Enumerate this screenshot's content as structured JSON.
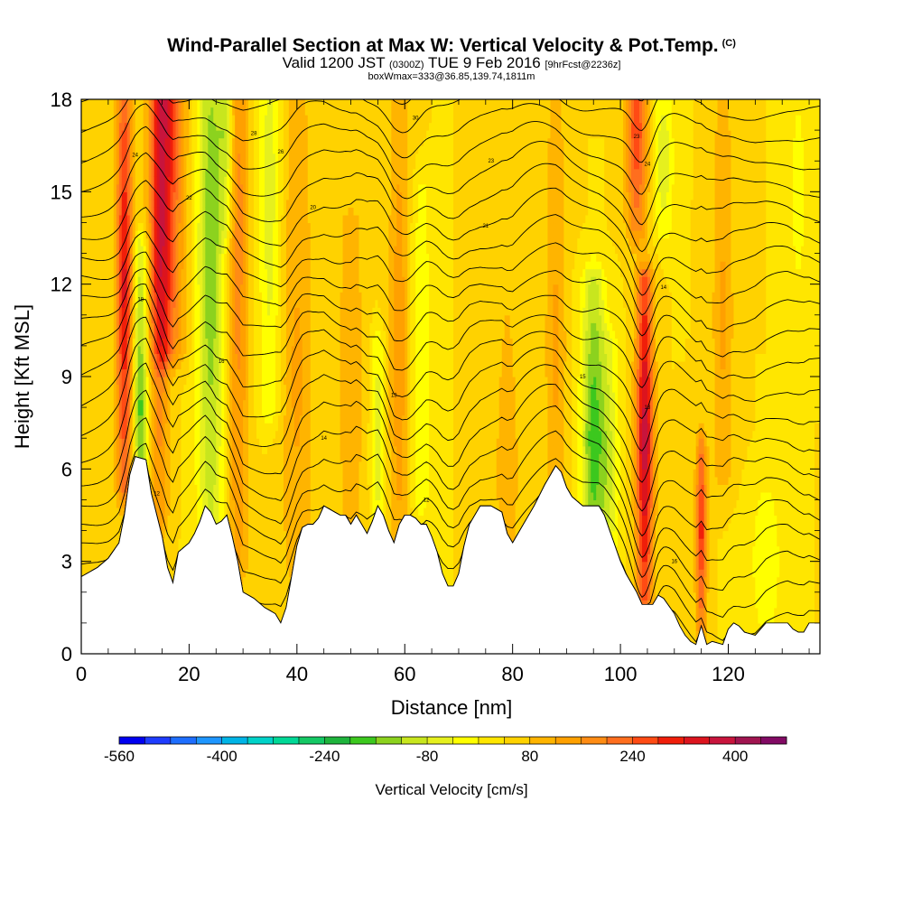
{
  "title": {
    "line1": "Wind-Parallel Section at Max W: Vertical Velocity & Pot.Temp.",
    "line1_mark": "(C)",
    "line2_a": "Valid 1200 JST",
    "line2_b": "(0300Z)",
    "line2_c": "TUE 9 Feb 2016",
    "line2_d": "[9hrFcst@2236z]",
    "line3": "boxWmax=333@36.85,139.74,1811m"
  },
  "chart_data": {
    "type": "heatmap",
    "xlabel": "Distance [nm]",
    "ylabel": "Height [Kft MSL]",
    "xlim": [
      0,
      137
    ],
    "ylim": [
      0,
      18
    ],
    "x_ticks": [
      0,
      20,
      40,
      60,
      80,
      100,
      120
    ],
    "y_ticks": [
      0,
      3,
      6,
      9,
      12,
      15,
      18
    ],
    "colorbar": {
      "label": "Vertical Velocity [cm/s]",
      "min": -560,
      "max": 480,
      "step": 40,
      "tick_values": [
        -560,
        -400,
        -240,
        -80,
        80,
        240,
        400
      ],
      "colors": [
        "#0000f0",
        "#1e3cff",
        "#1e6eff",
        "#1e96ff",
        "#00b4e6",
        "#00d2c8",
        "#00d896",
        "#14c864",
        "#1eb43c",
        "#3cc81e",
        "#8cd21e",
        "#c8e61e",
        "#e6f01e",
        "#ffff00",
        "#ffe600",
        "#ffd200",
        "#ffb400",
        "#ffa000",
        "#ff8c14",
        "#ff6e1e",
        "#ff4b14",
        "#f01e0a",
        "#dc141e",
        "#c8143c",
        "#a01450",
        "#820a64"
      ]
    },
    "terrain_kft": [
      [
        0,
        2.5
      ],
      [
        3,
        2.8
      ],
      [
        5,
        3.1
      ],
      [
        7,
        3.6
      ],
      [
        8,
        4.5
      ],
      [
        9,
        5.8
      ],
      [
        10,
        6.4
      ],
      [
        12,
        6.3
      ],
      [
        13,
        5.2
      ],
      [
        14,
        4.5
      ],
      [
        15,
        3.8
      ],
      [
        16,
        2.8
      ],
      [
        17,
        2.3
      ],
      [
        18,
        3.3
      ],
      [
        20,
        3.6
      ],
      [
        21,
        3.9
      ],
      [
        22,
        4.3
      ],
      [
        23,
        4.8
      ],
      [
        24,
        4.6
      ],
      [
        25,
        4.2
      ],
      [
        26,
        4.3
      ],
      [
        27,
        4.5
      ],
      [
        28,
        3.8
      ],
      [
        29,
        3.0
      ],
      [
        30,
        2.0
      ],
      [
        32,
        1.8
      ],
      [
        34,
        1.5
      ],
      [
        36,
        1.3
      ],
      [
        37,
        1.0
      ],
      [
        38,
        1.5
      ],
      [
        39,
        2.5
      ],
      [
        40,
        3.5
      ],
      [
        41,
        4.1
      ],
      [
        42,
        4.2
      ],
      [
        43,
        4.2
      ],
      [
        44,
        4.4
      ],
      [
        45,
        4.8
      ],
      [
        47,
        4.6
      ],
      [
        48,
        4.5
      ],
      [
        49,
        4.5
      ],
      [
        50,
        4.2
      ],
      [
        51,
        4.5
      ],
      [
        52,
        4.2
      ],
      [
        53,
        3.9
      ],
      [
        54,
        4.3
      ],
      [
        55,
        4.8
      ],
      [
        56,
        4.5
      ],
      [
        57,
        4.0
      ],
      [
        58,
        3.6
      ],
      [
        59,
        4.2
      ],
      [
        60,
        4.5
      ],
      [
        61,
        4.5
      ],
      [
        62,
        4.4
      ],
      [
        63,
        4.2
      ],
      [
        64,
        4.2
      ],
      [
        65,
        3.8
      ],
      [
        66,
        3.3
      ],
      [
        67,
        2.6
      ],
      [
        68,
        2.2
      ],
      [
        69,
        2.2
      ],
      [
        70,
        2.6
      ],
      [
        71,
        3.5
      ],
      [
        72,
        4.2
      ],
      [
        74,
        4.8
      ],
      [
        76,
        4.8
      ],
      [
        78,
        4.6
      ],
      [
        79,
        3.9
      ],
      [
        80,
        3.6
      ],
      [
        82,
        4.2
      ],
      [
        84,
        4.8
      ],
      [
        86,
        5.5
      ],
      [
        87,
        5.8
      ],
      [
        88,
        6.1
      ],
      [
        89,
        5.9
      ],
      [
        90,
        5.4
      ],
      [
        91,
        5.1
      ],
      [
        93,
        4.8
      ],
      [
        96,
        4.8
      ],
      [
        97,
        4.5
      ],
      [
        98,
        4.0
      ],
      [
        99,
        3.5
      ],
      [
        100,
        3.0
      ],
      [
        101,
        2.6
      ],
      [
        102,
        2.3
      ],
      [
        103,
        2.0
      ],
      [
        104,
        1.6
      ],
      [
        106,
        1.6
      ],
      [
        107,
        1.9
      ],
      [
        108,
        1.8
      ],
      [
        110,
        1.3
      ],
      [
        111,
        0.9
      ],
      [
        112,
        0.6
      ],
      [
        113,
        0.4
      ],
      [
        114,
        0.3
      ],
      [
        115,
        0.9
      ],
      [
        116,
        0.3
      ],
      [
        117,
        0.4
      ],
      [
        119,
        0.3
      ],
      [
        120,
        0.8
      ],
      [
        121,
        1.0
      ],
      [
        122,
        0.9
      ],
      [
        123,
        0.7
      ],
      [
        125,
        0.6
      ],
      [
        126,
        0.8
      ],
      [
        127,
        1.0
      ],
      [
        131,
        1.0
      ],
      [
        132,
        0.8
      ],
      [
        133,
        0.7
      ],
      [
        134,
        0.7
      ],
      [
        135,
        1.0
      ],
      [
        137,
        1.0
      ]
    ],
    "vertical_velocity_features": [
      {
        "x": 8,
        "w": 1.5,
        "z0": 5.5,
        "z1": 18,
        "peak": 12,
        "amp": 300
      },
      {
        "x": 11,
        "w": 1.3,
        "z0": 4.5,
        "z1": 13,
        "peak": 8,
        "amp": -220
      },
      {
        "x": 14.5,
        "w": 1.8,
        "z0": 4.5,
        "z1": 18,
        "peak": 12,
        "amp": 170
      },
      {
        "x": 16,
        "w": 3.0,
        "z0": 10,
        "z1": 18,
        "peak": 18,
        "amp": 260
      },
      {
        "x": 24,
        "w": 2.5,
        "z0": 4,
        "z1": 18,
        "peak": 13,
        "amp": -200
      },
      {
        "x": 29,
        "w": 2.0,
        "z0": 3,
        "z1": 18,
        "peak": 14,
        "amp": 150
      },
      {
        "x": 27,
        "w": 1.5,
        "z0": 14,
        "z1": 18,
        "peak": 17,
        "amp": -140
      },
      {
        "x": 35,
        "w": 2.0,
        "z0": 8,
        "z1": 18,
        "peak": 15,
        "amp": -110
      },
      {
        "x": 40,
        "w": 3.0,
        "z0": 3,
        "z1": 18,
        "peak": 9,
        "amp": 90
      },
      {
        "x": 50,
        "w": 2.5,
        "z0": 3,
        "z1": 14,
        "peak": 9,
        "amp": 80
      },
      {
        "x": 55,
        "w": 1.2,
        "z0": 4.5,
        "z1": 10,
        "peak": 7,
        "amp": -120
      },
      {
        "x": 59,
        "w": 2.0,
        "z0": 4,
        "z1": 18,
        "peak": 10,
        "amp": 110
      },
      {
        "x": 63,
        "w": 2.0,
        "z0": 5,
        "z1": 15,
        "peak": 9,
        "amp": -80
      },
      {
        "x": 79,
        "w": 3.0,
        "z0": 3,
        "z1": 12,
        "peak": 6,
        "amp": 60
      },
      {
        "x": 88,
        "w": 2.0,
        "z0": 6,
        "z1": 18,
        "peak": 10,
        "amp": 90
      },
      {
        "x": 95,
        "w": 2.2,
        "z0": 4.5,
        "z1": 12,
        "peak": 7,
        "amp": -230
      },
      {
        "x": 98,
        "w": 1.8,
        "z0": 4,
        "z1": 10,
        "peak": 6,
        "amp": -110
      },
      {
        "x": 104.5,
        "w": 1.6,
        "z0": 2,
        "z1": 12,
        "peak": 7,
        "amp": 360
      },
      {
        "x": 103,
        "w": 2.0,
        "z0": 14,
        "z1": 18,
        "peak": 17,
        "amp": 240
      },
      {
        "x": 108,
        "w": 1.8,
        "z0": 14,
        "z1": 18,
        "peak": 16,
        "amp": -120
      },
      {
        "x": 115,
        "w": 1.0,
        "z0": 1,
        "z1": 6.5,
        "peak": 4,
        "amp": 260
      },
      {
        "x": 119,
        "w": 2.0,
        "z0": 6,
        "z1": 18,
        "peak": 11,
        "amp": 90
      },
      {
        "x": 127,
        "w": 3.0,
        "z0": 1,
        "z1": 5,
        "peak": 3,
        "amp": -80
      },
      {
        "x": 133,
        "w": 2.0,
        "z0": 12,
        "z1": 18,
        "peak": 15,
        "amp": -60
      }
    ],
    "potential_temperature_contours": [
      {
        "label": "14",
        "label_x": 45,
        "label_y": 7.0
      },
      {
        "label": "13",
        "label_x": 58,
        "label_y": 8.4
      },
      {
        "label": "12",
        "label_x": 14,
        "label_y": 5.2
      },
      {
        "label": "15",
        "label_x": 93,
        "label_y": 9.0
      },
      {
        "label": "13",
        "label_x": 105,
        "label_y": 8.0
      },
      {
        "label": "16",
        "label_x": 26,
        "label_y": 9.5
      },
      {
        "label": "18",
        "label_x": 11,
        "label_y": 11.5
      },
      {
        "label": "14",
        "label_x": 108,
        "label_y": 11.9
      },
      {
        "label": "20",
        "label_x": 43,
        "label_y": 14.5
      },
      {
        "label": "22",
        "label_x": 20,
        "label_y": 14.8
      },
      {
        "label": "21",
        "label_x": 75,
        "label_y": 13.9
      },
      {
        "label": "24",
        "label_x": 10,
        "label_y": 16.2
      },
      {
        "label": "26",
        "label_x": 37,
        "label_y": 16.3
      },
      {
        "label": "23",
        "label_x": 76,
        "label_y": 16.0
      },
      {
        "label": "24",
        "label_x": 105,
        "label_y": 15.9
      },
      {
        "label": "28",
        "label_x": 32,
        "label_y": 16.9
      },
      {
        "label": "30",
        "label_x": 62,
        "label_y": 17.4
      },
      {
        "label": "23",
        "label_x": 103,
        "label_y": 16.8
      },
      {
        "label": "12",
        "label_x": 64,
        "label_y": 5.0
      },
      {
        "label": "16",
        "label_x": 110,
        "label_y": 3.0
      }
    ]
  }
}
